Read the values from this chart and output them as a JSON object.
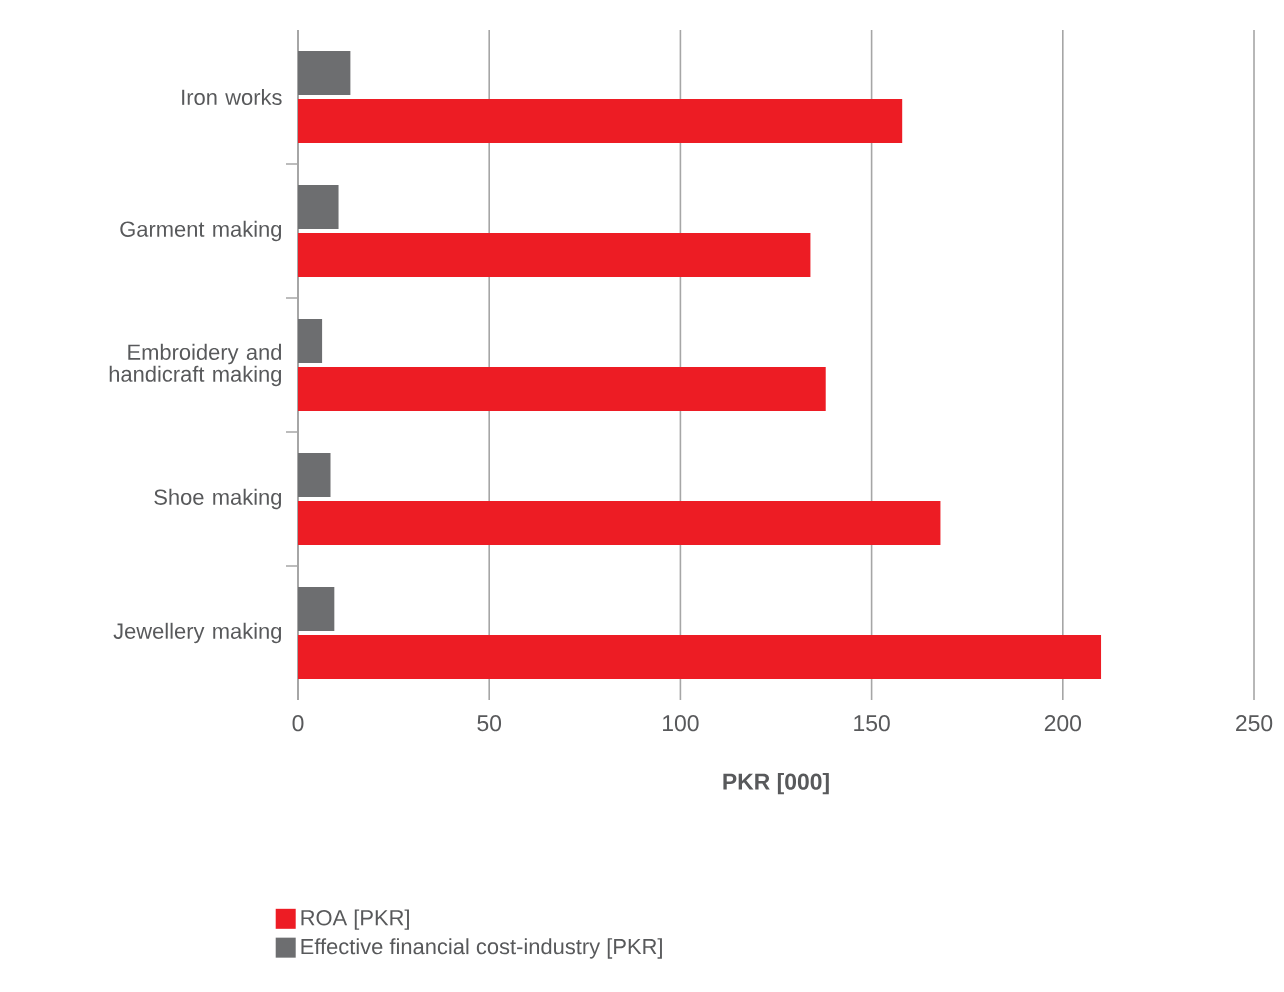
{
  "chart_data": {
    "type": "bar",
    "orientation": "horizontal",
    "categories": [
      "Iron works",
      "Garment making",
      "Embroidery and handicraft making",
      "Shoe making",
      "Jewellery making"
    ],
    "series": [
      {
        "name": "ROA [PKR]",
        "color": "#ed1c24",
        "values": [
          158,
          134,
          138,
          168,
          210
        ]
      },
      {
        "name": "Effective financial cost-industry [PKR]",
        "color": "#6d6e70",
        "values": [
          13.7,
          10.6,
          6.3,
          8.5,
          9.5
        ]
      }
    ],
    "xlim": [
      0,
      250
    ],
    "xticks": [
      0,
      50,
      100,
      150,
      200,
      250
    ],
    "xlabel": "PKR [000]",
    "grid": "x",
    "legend": "bottom"
  }
}
